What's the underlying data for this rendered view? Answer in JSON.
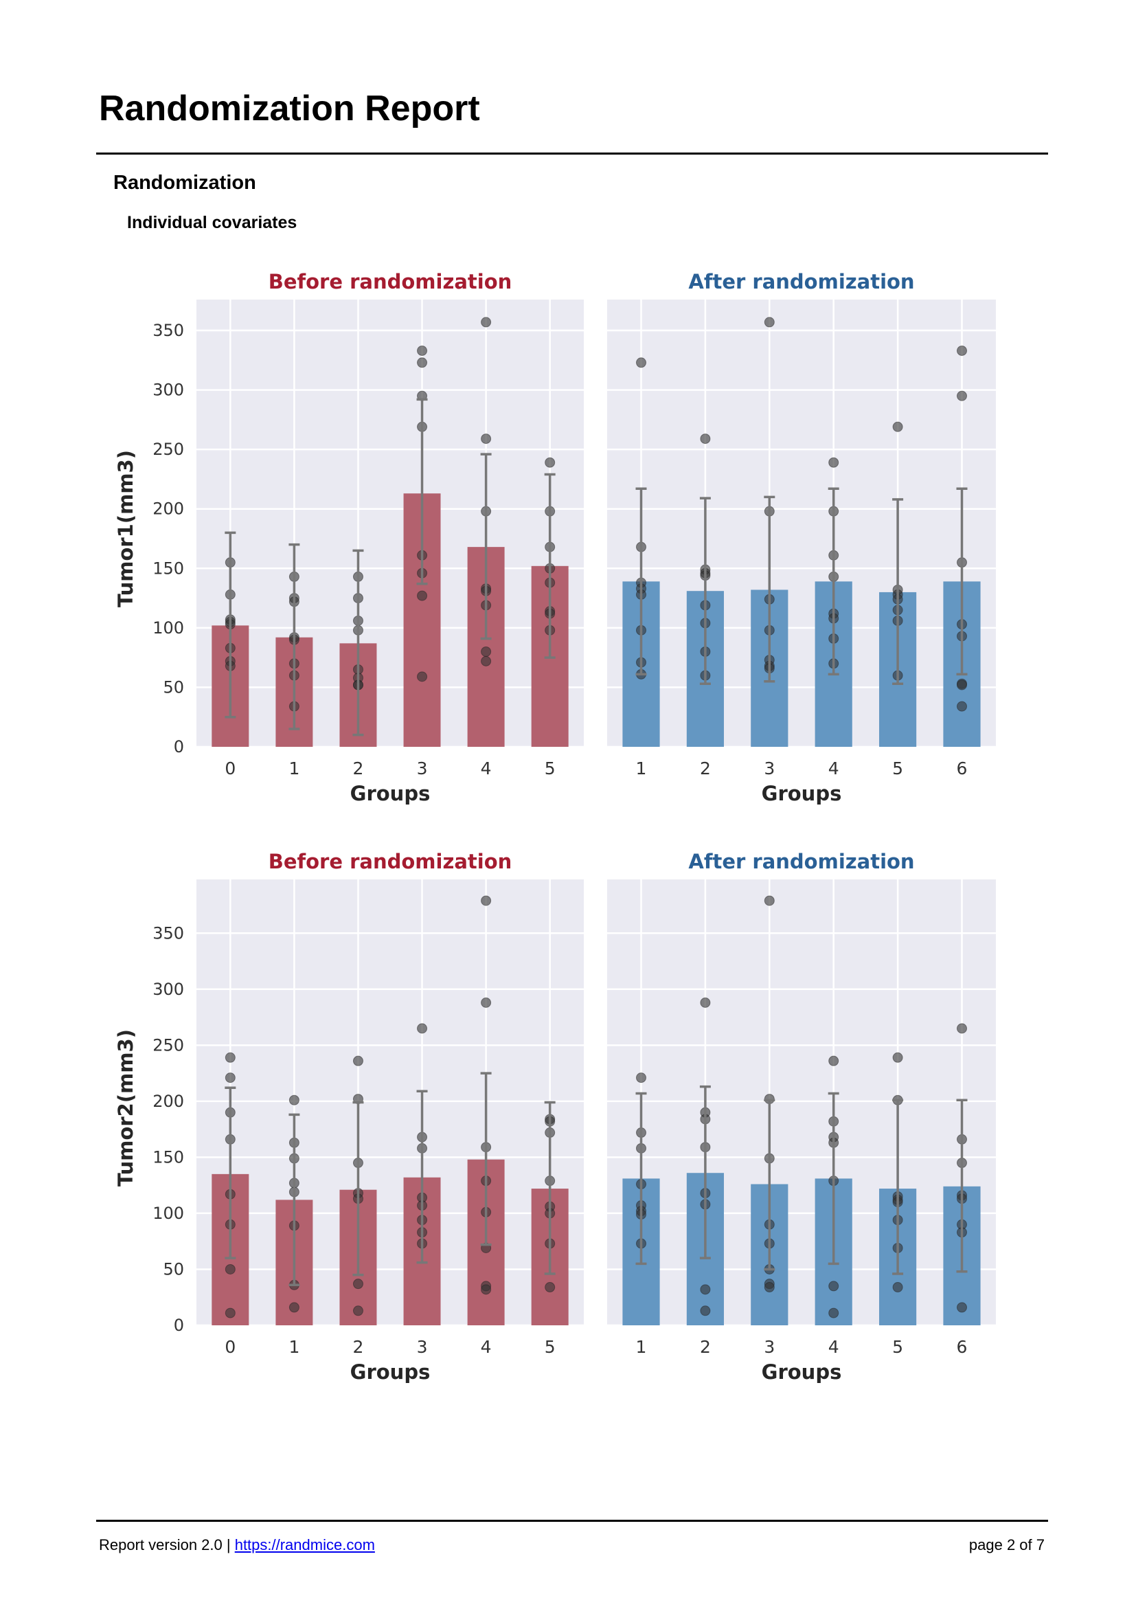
{
  "header": {
    "title": "Randomization Report"
  },
  "section": {
    "title": "Randomization",
    "subtitle": "Individual covariates"
  },
  "footer": {
    "version_text": "Report version 2.0 | ",
    "link": "https://randmice.com",
    "page": "page 2 of 7"
  },
  "colors": {
    "before_bar": "#b3616e",
    "after_bar": "#6497c2",
    "before_title": "#a51c30",
    "after_title": "#2a6096",
    "plot_bg": "#eaeaf2",
    "point": "#333333",
    "error_bar": "#777777"
  },
  "chart_data": [
    {
      "type": "bar",
      "title": "Before randomization",
      "xlabel": "Groups",
      "ylabel": "Tumor1(mm3)",
      "ylim": [
        0,
        376
      ],
      "yticks": [
        0,
        50,
        100,
        150,
        200,
        250,
        300,
        350
      ],
      "grid": true,
      "categories": [
        "0",
        "1",
        "2",
        "3",
        "4",
        "5"
      ],
      "values": [
        102,
        92,
        87,
        213,
        168,
        152
      ],
      "error": [
        [
          25,
          180
        ],
        [
          15,
          170
        ],
        [
          10,
          165
        ],
        [
          137,
          292
        ],
        [
          91,
          246
        ],
        [
          75,
          229
        ]
      ],
      "points": [
        [
          155,
          128,
          107,
          105,
          103,
          83,
          72,
          68
        ],
        [
          143,
          125,
          122,
          92,
          90,
          70,
          60,
          34
        ],
        [
          143,
          125,
          106,
          98,
          65,
          58,
          52,
          52
        ],
        [
          333,
          323,
          295,
          269,
          161,
          146,
          127,
          59
        ],
        [
          357,
          259,
          198,
          133,
          131,
          119,
          80,
          72
        ],
        [
          239,
          198,
          168,
          150,
          138,
          114,
          112,
          98
        ]
      ]
    },
    {
      "type": "bar",
      "title": "After randomization",
      "xlabel": "Groups",
      "ylabel": "",
      "ylim": [
        0,
        376
      ],
      "yticks": [
        0,
        50,
        100,
        150,
        200,
        250,
        300,
        350
      ],
      "grid": true,
      "categories": [
        "1",
        "2",
        "3",
        "4",
        "5",
        "6"
      ],
      "values": [
        139,
        131,
        132,
        139,
        130,
        139
      ],
      "error": [
        [
          61,
          217
        ],
        [
          53,
          209
        ],
        [
          55,
          210
        ],
        [
          61,
          217
        ],
        [
          53,
          208
        ],
        [
          61,
          217
        ]
      ],
      "points": [
        [
          323,
          168,
          138,
          133,
          128,
          98,
          71,
          61
        ],
        [
          259,
          149,
          146,
          144,
          119,
          104,
          80,
          60
        ],
        [
          357,
          198,
          124,
          98,
          73,
          68,
          66
        ],
        [
          239,
          198,
          161,
          143,
          112,
          108,
          91,
          70
        ],
        [
          269,
          132,
          128,
          124,
          115,
          106,
          60
        ],
        [
          333,
          295,
          155,
          103,
          93,
          53,
          52,
          34
        ]
      ]
    },
    {
      "type": "bar",
      "title": "Before randomization",
      "xlabel": "Groups",
      "ylabel": "Tumor2(mm3)",
      "ylim": [
        0,
        398
      ],
      "yticks": [
        0,
        50,
        100,
        150,
        200,
        250,
        300,
        350
      ],
      "grid": true,
      "categories": [
        "0",
        "1",
        "2",
        "3",
        "4",
        "5"
      ],
      "values": [
        135,
        112,
        121,
        132,
        148,
        122
      ],
      "error": [
        [
          60,
          212
        ],
        [
          36,
          188
        ],
        [
          45,
          199
        ],
        [
          56,
          209
        ],
        [
          72,
          225
        ],
        [
          46,
          199
        ]
      ],
      "points": [
        [
          239,
          221,
          190,
          166,
          117,
          90,
          50,
          11
        ],
        [
          201,
          163,
          149,
          127,
          119,
          89,
          36,
          16
        ],
        [
          236,
          202,
          145,
          118,
          113,
          37,
          13
        ],
        [
          265,
          168,
          158,
          114,
          107,
          94,
          83,
          73
        ],
        [
          379,
          288,
          159,
          129,
          101,
          69,
          35,
          32
        ],
        [
          184,
          182,
          172,
          129,
          106,
          100,
          73,
          34
        ]
      ]
    },
    {
      "type": "bar",
      "title": "After randomization",
      "xlabel": "Groups",
      "ylabel": "",
      "ylim": [
        0,
        398
      ],
      "yticks": [
        0,
        50,
        100,
        150,
        200,
        250,
        300,
        350
      ],
      "grid": true,
      "categories": [
        "1",
        "2",
        "3",
        "4",
        "5",
        "6"
      ],
      "values": [
        131,
        136,
        126,
        131,
        122,
        124
      ],
      "error": [
        [
          55,
          207
        ],
        [
          60,
          213
        ],
        [
          50,
          201
        ],
        [
          55,
          207
        ],
        [
          46,
          201
        ],
        [
          48,
          201
        ]
      ],
      "points": [
        [
          221,
          172,
          158,
          126,
          107,
          102,
          99,
          73
        ],
        [
          288,
          190,
          184,
          159,
          118,
          108,
          32,
          13
        ],
        [
          379,
          202,
          149,
          90,
          73,
          50,
          37,
          34
        ],
        [
          236,
          182,
          168,
          163,
          129,
          35,
          11
        ],
        [
          239,
          201,
          115,
          112,
          110,
          94,
          69,
          34
        ],
        [
          265,
          166,
          145,
          116,
          113,
          90,
          83,
          16
        ]
      ]
    }
  ]
}
